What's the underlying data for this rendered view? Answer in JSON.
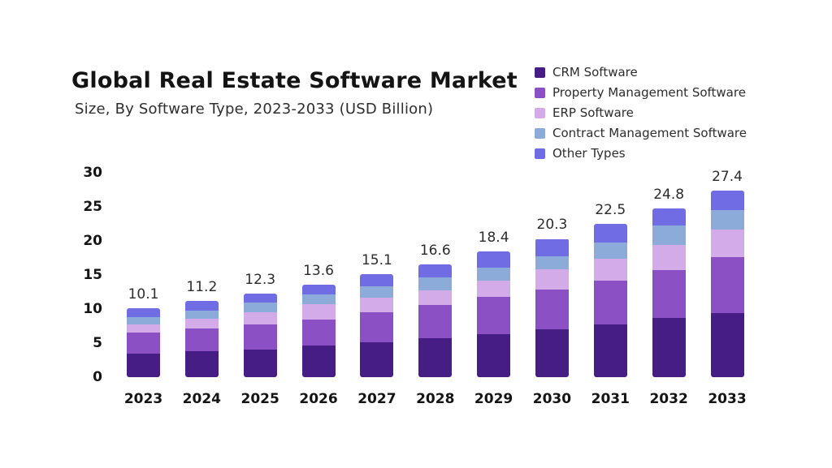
{
  "page": {
    "background": "#ffffff"
  },
  "header": {
    "title": "Global Real Estate Software Market",
    "subtitle": "Size, By Software Type, 2023-2033 (USD Billion)"
  },
  "chart_data": {
    "type": "bar",
    "stacked": true,
    "title": "Global Real Estate Software Market",
    "subtitle": "Size, By Software Type, 2023-2033 (USD Billion)",
    "unit": "USD Billion",
    "grid": false,
    "legend_position": "top-right",
    "bar_total_labels": true,
    "categories": [
      "2023",
      "2024",
      "2025",
      "2026",
      "2027",
      "2028",
      "2029",
      "2030",
      "2031",
      "2032",
      "2033"
    ],
    "totals": [
      10.1,
      11.2,
      12.3,
      13.6,
      15.1,
      16.6,
      18.4,
      20.3,
      22.5,
      24.8,
      27.4
    ],
    "series": [
      {
        "name": "CRM Software",
        "color": "#451d85",
        "values": [
          3.5,
          3.8,
          4.1,
          4.6,
          5.1,
          5.7,
          6.3,
          7.0,
          7.7,
          8.7,
          9.4
        ]
      },
      {
        "name": "Property Management Software",
        "color": "#8a50c4",
        "values": [
          3.0,
          3.4,
          3.6,
          3.9,
          4.4,
          4.9,
          5.5,
          5.9,
          6.5,
          7.0,
          8.2
        ]
      },
      {
        "name": "ERP Software",
        "color": "#d4abe9",
        "values": [
          1.3,
          1.4,
          1.8,
          2.2,
          2.2,
          2.2,
          2.4,
          2.9,
          3.2,
          3.7,
          4.1
        ]
      },
      {
        "name": "Contract Management Software",
        "color": "#8dabd9",
        "values": [
          1.0,
          1.2,
          1.4,
          1.4,
          1.6,
          1.8,
          1.9,
          2.0,
          2.4,
          2.9,
          2.8
        ]
      },
      {
        "name": "Other Types",
        "color": "#6f6ce4",
        "values": [
          1.3,
          1.4,
          1.4,
          1.5,
          1.8,
          2.0,
          2.3,
          2.5,
          2.7,
          2.5,
          2.9
        ]
      }
    ],
    "yaxis": {
      "ticks": [
        30,
        25,
        20,
        15,
        10,
        5,
        0
      ],
      "min": 0,
      "max": 30
    }
  }
}
